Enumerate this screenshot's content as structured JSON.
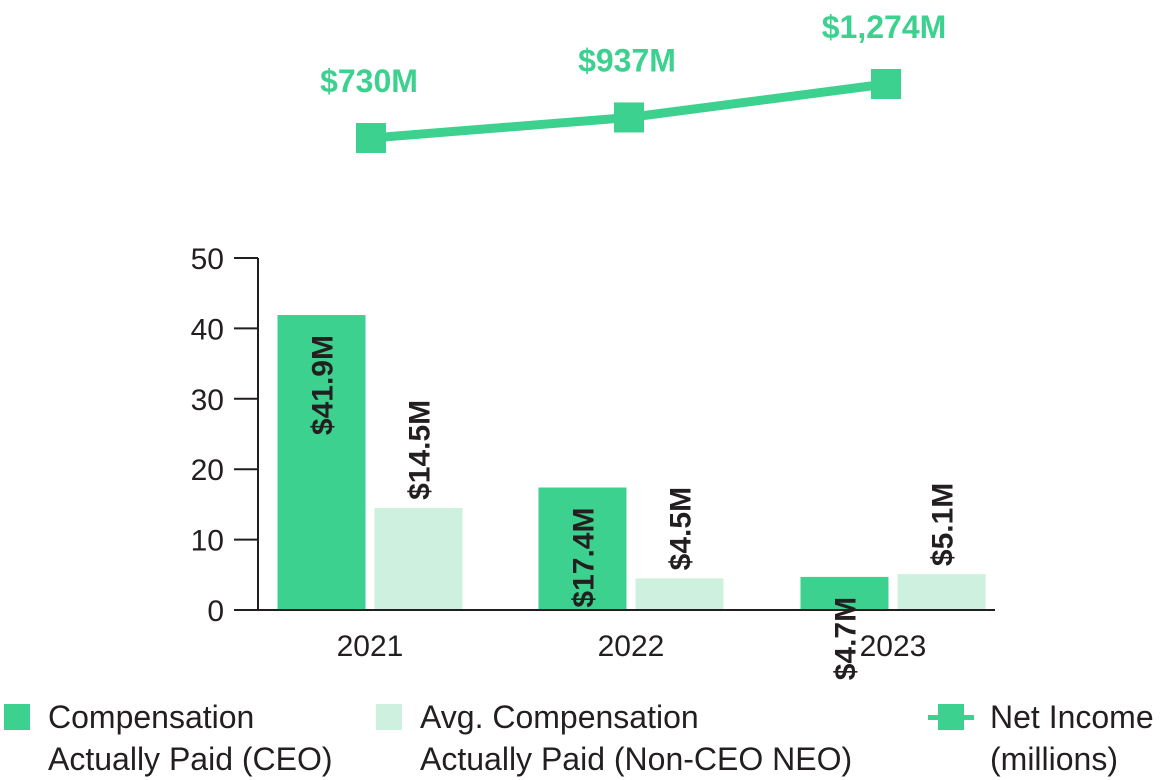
{
  "chart_data": [
    {
      "type": "line",
      "title": "Net Income (millions)",
      "categories": [
        "2021",
        "2022",
        "2023"
      ],
      "values": [
        730,
        937,
        1274
      ],
      "value_labels": [
        "$730M",
        "$937M",
        "$1,274M"
      ]
    },
    {
      "type": "bar",
      "categories": [
        "2021",
        "2022",
        "2023"
      ],
      "ylim": [
        0,
        50
      ],
      "yticks": [
        "0",
        "10",
        "20",
        "30",
        "40",
        "50"
      ],
      "series": [
        {
          "name": "Compensation Actually Paid (CEO)",
          "values": [
            41.9,
            17.4,
            4.7
          ],
          "value_labels": [
            "$41.9M",
            "$17.4M",
            "$4.7M"
          ]
        },
        {
          "name": "Avg. Compensation Actually Paid (Non-CEO NEO)",
          "values": [
            14.5,
            4.5,
            5.1
          ],
          "value_labels": [
            "$14.5M",
            "$4.5M",
            "$5.1M"
          ]
        }
      ]
    }
  ],
  "colors": {
    "ceo": "#3dd18f",
    "neo": "#cdf1de",
    "net_income": "#3dd18f",
    "axis": "#231f20"
  },
  "legend": {
    "ceo_line1": "Compensation",
    "ceo_line2": "Actually Paid (CEO)",
    "neo_line1": "Avg. Compensation",
    "neo_line2": "Actually Paid (Non-CEO NEO)",
    "ni_line1": "Net Income",
    "ni_line2": "(millions)"
  }
}
